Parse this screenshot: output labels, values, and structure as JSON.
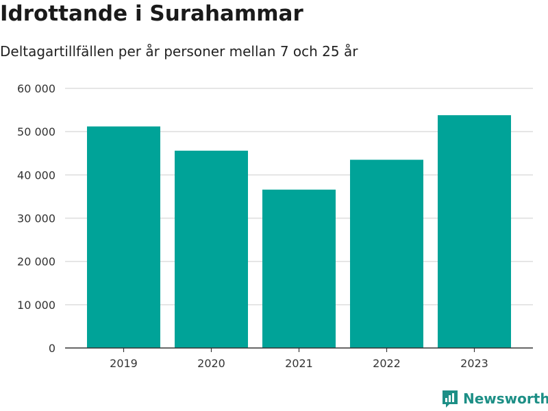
{
  "title": "Idrottande i Surahammar",
  "subtitle": "Deltagartillfällen per år personer mellan 7 och 25 år",
  "brand": {
    "name": "Newsworthy",
    "icon": "newsworthy-logo-icon",
    "color": "#1d8f86"
  },
  "colors": {
    "bar": "#00a398",
    "grid": "#dddddd",
    "axis": "#333333"
  },
  "chart_data": {
    "type": "bar",
    "title": "Idrottande i Surahammar",
    "subtitle": "Deltagartillfällen per år personer mellan 7 och 25 år",
    "categories": [
      "2019",
      "2020",
      "2021",
      "2022",
      "2023"
    ],
    "values": [
      51200,
      45600,
      36600,
      43500,
      53800
    ],
    "ylim": [
      0,
      60000
    ],
    "yticks": [
      0,
      10000,
      20000,
      30000,
      40000,
      50000,
      60000
    ],
    "ytick_labels": [
      "0",
      "10 000",
      "20 000",
      "30 000",
      "40 000",
      "50 000",
      "60 000"
    ],
    "xlabel": "",
    "ylabel": "",
    "grid": true,
    "legend": false
  }
}
